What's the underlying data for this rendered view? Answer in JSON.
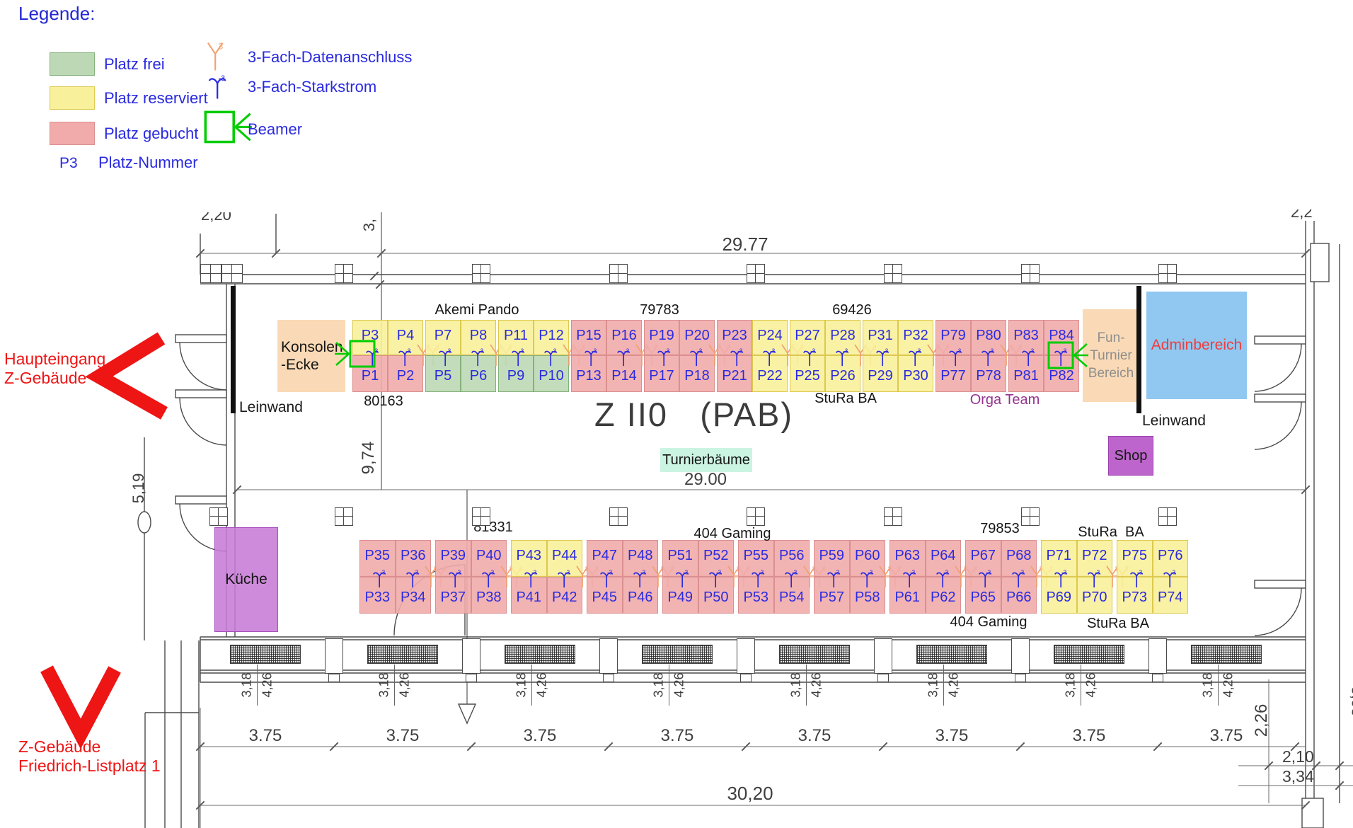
{
  "legend": {
    "title": "Legende:",
    "items": [
      {
        "label": "Platz frei",
        "status": "frei"
      },
      {
        "label": "Platz reserviert",
        "status": "reserviert"
      },
      {
        "label": "Platz gebucht",
        "status": "gebucht"
      }
    ],
    "seat_number_example": {
      "code": "P3",
      "label": "Platz-Nummer"
    },
    "symbols": [
      {
        "icon": "datenanschluss-icon",
        "label": "3-Fach-Datenanschluss",
        "sup": "3"
      },
      {
        "icon": "starkstrom-icon",
        "label": "3-Fach-Starkstrom",
        "sup": "-3"
      },
      {
        "icon": "beamer-icon",
        "label": "Beamer"
      }
    ]
  },
  "status_colors": {
    "frei": {
      "fill": "#bcd8b4",
      "border": "#84b17c"
    },
    "reserviert": {
      "fill": "#f8f09a",
      "border": "#dcc94f"
    },
    "gebucht": {
      "fill": "#f1abab",
      "border": "#db8f8f"
    }
  },
  "colors": {
    "area_orange": "#f9d6ae",
    "admin_blue": "#84c2ef",
    "kueche_purple": "#c77bd6",
    "shop_purple": "#bd65cc",
    "mint": "#cbf4e3",
    "seat_text_blue": "#2b2be0",
    "legend_blue": "#2a2ae0",
    "annotation_red": "#ee1515",
    "orga_purple": "#93338f",
    "beamer_green": "#00cc00",
    "daten_orange": "#f2a06e",
    "stark_blue": "#2a2ae0"
  },
  "areas": {
    "konsolen_ecke": {
      "lines": [
        "Konsolen",
        "-Ecke"
      ]
    },
    "fun_turnier": {
      "lines": [
        "Fun-",
        "Turnier",
        "Bereich"
      ]
    },
    "adminbereich": {
      "label": "Adminbereich"
    },
    "shop": {
      "label": "Shop"
    },
    "kueche": {
      "label": "Küche"
    },
    "turnierbaeume": {
      "label": "Turnierbäume"
    }
  },
  "annotations": {
    "room_title": "Z II0   (PAB)",
    "main_entrance_lines": [
      "Haupteingang",
      "Z-Gebäude"
    ],
    "address_lines": [
      "Z-Gebäude",
      "Friedrich-Listplatz 1"
    ],
    "leinwand_left": "Leinwand",
    "leinwand_right": "Leinwand"
  },
  "dims": {
    "top_width": "29.77",
    "inner_width": "29.00",
    "total_width": "30,20",
    "bay_widths": [
      "3.75",
      "3.75",
      "3.75",
      "3.75",
      "3.75",
      "3.75",
      "3.75",
      "3.75"
    ],
    "window_pair": [
      "3,18",
      "4,26"
    ],
    "room_depth": "9,74",
    "left_height": "5,19",
    "right_side": [
      "2,26",
      "2,10",
      "3,34"
    ],
    "clipped": {
      "top_left": "2,20",
      "top_left_rot": "3,",
      "top_right": "2,2",
      "right_edge": "3,03"
    }
  },
  "seat_rows": {
    "top": {
      "labels_above": [
        "Akemi Pando",
        "79783",
        "69426"
      ],
      "labels_below": [
        "80163",
        "StuRa BA",
        "Orga Team"
      ],
      "blocks": [
        {
          "top": [
            {
              "id": "P3",
              "status": "reserviert"
            },
            {
              "id": "P4",
              "status": "reserviert"
            }
          ],
          "bottom": [
            {
              "id": "P1",
              "status": "gebucht"
            },
            {
              "id": "P2",
              "status": "gebucht"
            }
          ],
          "beamer": "left"
        },
        {
          "top": [
            {
              "id": "P7",
              "status": "reserviert"
            },
            {
              "id": "P8",
              "status": "reserviert"
            }
          ],
          "bottom": [
            {
              "id": "P5",
              "status": "frei"
            },
            {
              "id": "P6",
              "status": "frei"
            }
          ]
        },
        {
          "top": [
            {
              "id": "P11",
              "status": "reserviert"
            },
            {
              "id": "P12",
              "status": "reserviert"
            }
          ],
          "bottom": [
            {
              "id": "P9",
              "status": "frei"
            },
            {
              "id": "P10",
              "status": "frei"
            }
          ]
        },
        {
          "top": [
            {
              "id": "P15",
              "status": "gebucht"
            },
            {
              "id": "P16",
              "status": "gebucht"
            }
          ],
          "bottom": [
            {
              "id": "P13",
              "status": "gebucht"
            },
            {
              "id": "P14",
              "status": "gebucht"
            }
          ]
        },
        {
          "top": [
            {
              "id": "P19",
              "status": "gebucht"
            },
            {
              "id": "P20",
              "status": "gebucht"
            }
          ],
          "bottom": [
            {
              "id": "P17",
              "status": "gebucht"
            },
            {
              "id": "P18",
              "status": "gebucht"
            }
          ]
        },
        {
          "top": [
            {
              "id": "P23",
              "status": "gebucht"
            },
            {
              "id": "P24",
              "status": "reserviert"
            }
          ],
          "bottom": [
            {
              "id": "P21",
              "status": "gebucht"
            },
            {
              "id": "P22",
              "status": "reserviert"
            }
          ]
        },
        {
          "top": [
            {
              "id": "P27",
              "status": "reserviert"
            },
            {
              "id": "P28",
              "status": "reserviert"
            }
          ],
          "bottom": [
            {
              "id": "P25",
              "status": "reserviert"
            },
            {
              "id": "P26",
              "status": "reserviert"
            }
          ]
        },
        {
          "top": [
            {
              "id": "P31",
              "status": "reserviert"
            },
            {
              "id": "P32",
              "status": "reserviert"
            }
          ],
          "bottom": [
            {
              "id": "P29",
              "status": "reserviert"
            },
            {
              "id": "P30",
              "status": "reserviert"
            }
          ]
        },
        {
          "top": [
            {
              "id": "P79",
              "status": "gebucht"
            },
            {
              "id": "P80",
              "status": "gebucht"
            }
          ],
          "bottom": [
            {
              "id": "P77",
              "status": "gebucht"
            },
            {
              "id": "P78",
              "status": "gebucht"
            }
          ]
        },
        {
          "top": [
            {
              "id": "P83",
              "status": "gebucht"
            },
            {
              "id": "P84",
              "status": "gebucht"
            }
          ],
          "bottom": [
            {
              "id": "P81",
              "status": "gebucht"
            },
            {
              "id": "P82",
              "status": "gebucht"
            }
          ],
          "beamer": "right"
        }
      ]
    },
    "bottom": {
      "labels_above": [
        "81331",
        "404 Gaming",
        "79853",
        "StuRa  BA"
      ],
      "labels_below": [
        "404 Gaming",
        "StuRa BA"
      ],
      "blocks": [
        {
          "top": [
            {
              "id": "P35",
              "status": "gebucht"
            },
            {
              "id": "P36",
              "status": "gebucht"
            }
          ],
          "bottom": [
            {
              "id": "P33",
              "status": "gebucht"
            },
            {
              "id": "P34",
              "status": "gebucht"
            }
          ]
        },
        {
          "top": [
            {
              "id": "P39",
              "status": "gebucht"
            },
            {
              "id": "P40",
              "status": "gebucht"
            }
          ],
          "bottom": [
            {
              "id": "P37",
              "status": "gebucht"
            },
            {
              "id": "P38",
              "status": "gebucht"
            }
          ]
        },
        {
          "top": [
            {
              "id": "P43",
              "status": "reserviert"
            },
            {
              "id": "P44",
              "status": "reserviert"
            }
          ],
          "bottom": [
            {
              "id": "P41",
              "status": "gebucht"
            },
            {
              "id": "P42",
              "status": "gebucht"
            }
          ]
        },
        {
          "top": [
            {
              "id": "P47",
              "status": "gebucht"
            },
            {
              "id": "P48",
              "status": "gebucht"
            }
          ],
          "bottom": [
            {
              "id": "P45",
              "status": "gebucht"
            },
            {
              "id": "P46",
              "status": "gebucht"
            }
          ]
        },
        {
          "top": [
            {
              "id": "P51",
              "status": "gebucht"
            },
            {
              "id": "P52",
              "status": "gebucht"
            }
          ],
          "bottom": [
            {
              "id": "P49",
              "status": "gebucht"
            },
            {
              "id": "P50",
              "status": "gebucht"
            }
          ]
        },
        {
          "top": [
            {
              "id": "P55",
              "status": "gebucht"
            },
            {
              "id": "P56",
              "status": "gebucht"
            }
          ],
          "bottom": [
            {
              "id": "P53",
              "status": "gebucht"
            },
            {
              "id": "P54",
              "status": "gebucht"
            }
          ]
        },
        {
          "top": [
            {
              "id": "P59",
              "status": "gebucht"
            },
            {
              "id": "P60",
              "status": "gebucht"
            }
          ],
          "bottom": [
            {
              "id": "P57",
              "status": "gebucht"
            },
            {
              "id": "P58",
              "status": "gebucht"
            }
          ]
        },
        {
          "top": [
            {
              "id": "P63",
              "status": "gebucht"
            },
            {
              "id": "P64",
              "status": "gebucht"
            }
          ],
          "bottom": [
            {
              "id": "P61",
              "status": "gebucht"
            },
            {
              "id": "P62",
              "status": "gebucht"
            }
          ]
        },
        {
          "top": [
            {
              "id": "P67",
              "status": "gebucht"
            },
            {
              "id": "P68",
              "status": "gebucht"
            }
          ],
          "bottom": [
            {
              "id": "P65",
              "status": "gebucht"
            },
            {
              "id": "P66",
              "status": "gebucht"
            }
          ]
        },
        {
          "top": [
            {
              "id": "P71",
              "status": "reserviert"
            },
            {
              "id": "P72",
              "status": "reserviert"
            }
          ],
          "bottom": [
            {
              "id": "P69",
              "status": "reserviert"
            },
            {
              "id": "P70",
              "status": "reserviert"
            }
          ]
        },
        {
          "top": [
            {
              "id": "P75",
              "status": "reserviert"
            },
            {
              "id": "P76",
              "status": "reserviert"
            }
          ],
          "bottom": [
            {
              "id": "P73",
              "status": "reserviert"
            },
            {
              "id": "P74",
              "status": "reserviert"
            }
          ]
        }
      ]
    }
  }
}
